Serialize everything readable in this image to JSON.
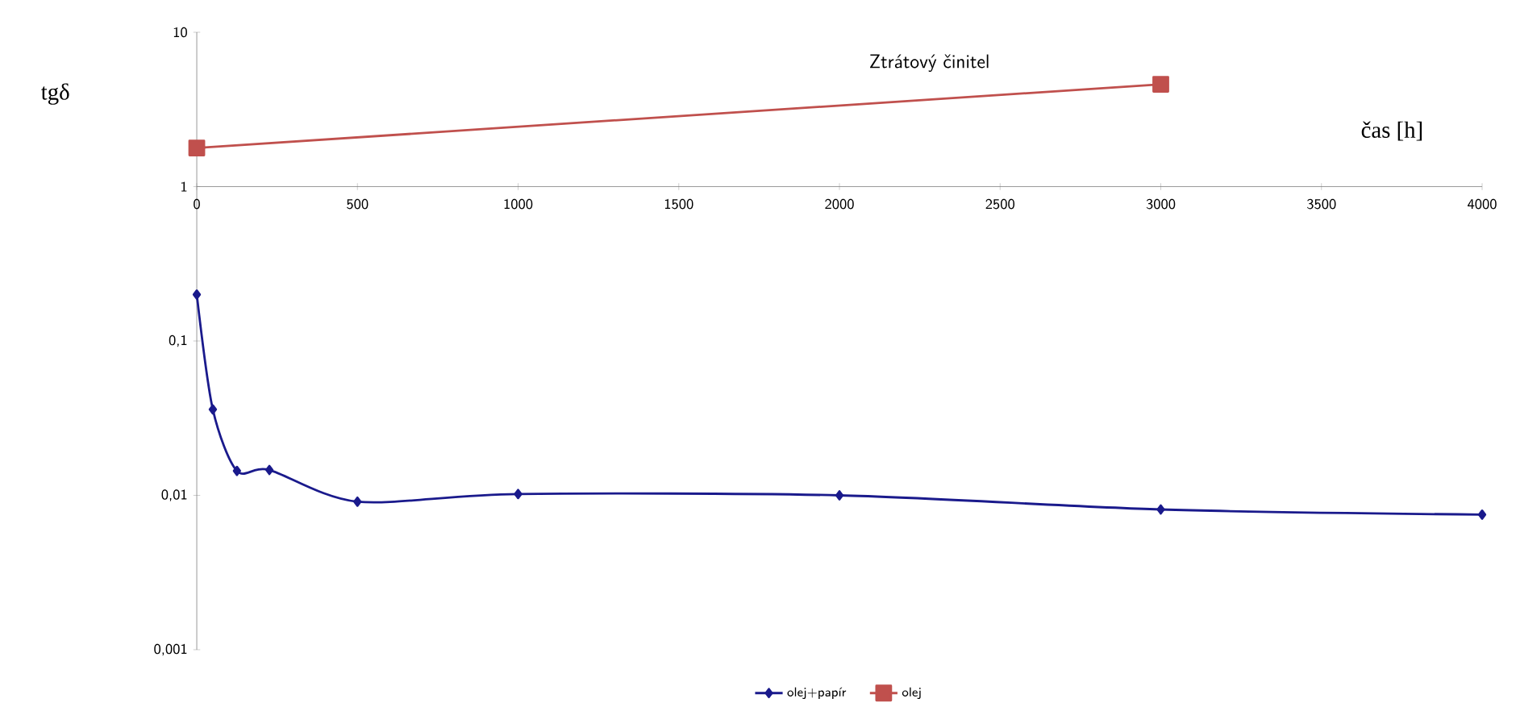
{
  "chart_data": {
    "type": "line",
    "title": "Ztrátový činitel",
    "xlabel": "čas [h]",
    "ylabel": "tgδ",
    "log": "y",
    "xlim": [
      0,
      4000
    ],
    "ylim": [
      0.001,
      10
    ],
    "xticks": [
      0,
      500,
      1000,
      1500,
      2000,
      2500,
      3000,
      3500,
      4000
    ],
    "yticks": [
      {
        "value": 0.001,
        "label": "0,001"
      },
      {
        "value": 0.01,
        "label": "0,01"
      },
      {
        "value": 0.1,
        "label": "0,1"
      },
      {
        "value": 1,
        "label": "1"
      },
      {
        "value": 10,
        "label": "10"
      }
    ],
    "grid": false,
    "legend": "bottom",
    "series": [
      {
        "name": "olej+papír",
        "color": "#1a1a8c",
        "marker": "diamond",
        "x": [
          0,
          50,
          125,
          226,
          500,
          1000,
          2000,
          3000,
          4000
        ],
        "values": [
          0.2,
          0.036,
          0.0144,
          0.0146,
          0.0091,
          0.0102,
          0.01,
          0.0081,
          0.0075
        ]
      },
      {
        "name": "olej",
        "color": "#c0504d",
        "marker": "square",
        "x": [
          0,
          3000
        ],
        "values": [
          1.78,
          4.6
        ]
      }
    ]
  }
}
